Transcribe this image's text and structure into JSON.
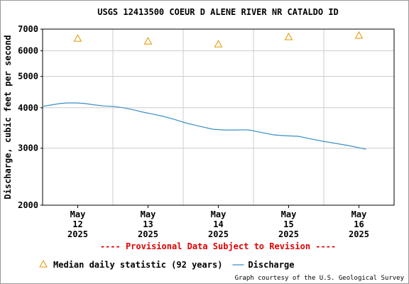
{
  "chart_data": {
    "type": "line",
    "title": "USGS 12413500 COEUR D ALENE RIVER NR CATALDO ID",
    "y_label": "Discharge, cubic feet per second",
    "note": "---- Provisional Data Subject to Revision ----",
    "credit": "Graph courtesy of the U.S. Geological Survey",
    "log_y": true,
    "grid": true,
    "xlim": [
      12,
      17
    ],
    "xgrid": [
      13,
      14,
      15,
      16
    ],
    "xticks": [
      {
        "value": 12.5,
        "label": "May\n12\n2025"
      },
      {
        "value": 13.5,
        "label": "May\n13\n2025"
      },
      {
        "value": 14.5,
        "label": "May\n14\n2025"
      },
      {
        "value": 15.5,
        "label": "May\n15\n2025"
      },
      {
        "value": 16.5,
        "label": "May\n16\n2025"
      }
    ],
    "ylim": [
      2000,
      7000
    ],
    "yticks": [
      2000,
      3000,
      4000,
      5000,
      6000,
      7000
    ],
    "series": [
      {
        "name": "Median daily statistic (92 years)",
        "color": "#e69500",
        "marker": "triangle",
        "x": [
          12.5,
          13.5,
          14.5,
          15.5,
          16.5
        ],
        "values": [
          6550,
          6420,
          6290,
          6620,
          6690
        ]
      },
      {
        "name": "Discharge",
        "color": "#3a8fc8",
        "marker": "none",
        "x": [
          12.0,
          12.12,
          12.24,
          12.35,
          12.48,
          12.61,
          12.75,
          12.88,
          13.0,
          13.15,
          13.3,
          13.43,
          13.58,
          13.72,
          13.88,
          14.03,
          14.2,
          14.42,
          14.58,
          14.73,
          14.88,
          14.94,
          15.1,
          15.29,
          15.45,
          15.64,
          15.8,
          15.99,
          16.15,
          16.35,
          16.5,
          16.6
        ],
        "values": [
          4040,
          4080,
          4120,
          4140,
          4140,
          4120,
          4080,
          4050,
          4040,
          4000,
          3940,
          3877,
          3820,
          3760,
          3680,
          3594,
          3520,
          3434,
          3415,
          3415,
          3420,
          3415,
          3360,
          3298,
          3280,
          3265,
          3210,
          3151,
          3110,
          3057,
          3010,
          2980
        ]
      }
    ],
    "legend": "bottom"
  }
}
